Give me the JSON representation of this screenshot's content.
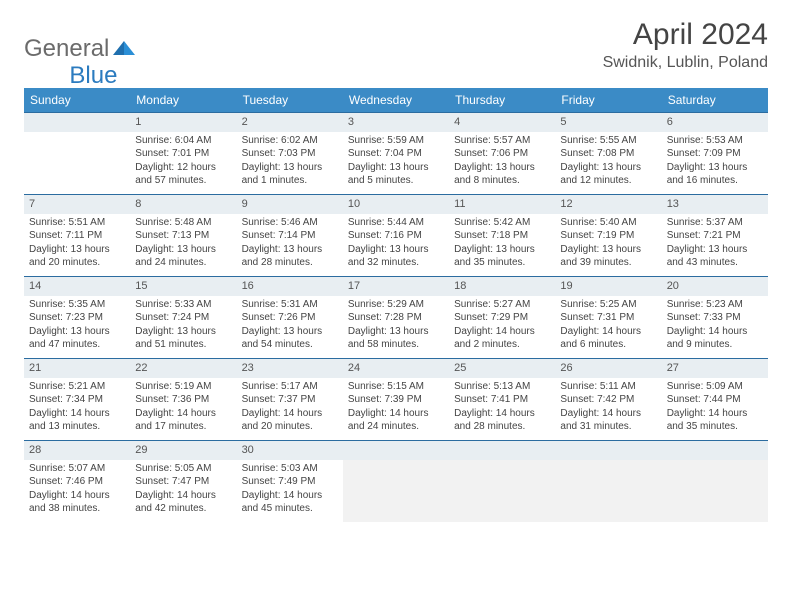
{
  "brand": {
    "general": "General",
    "blue": "Blue"
  },
  "title": "April 2024",
  "location": "Swidnik, Lublin, Poland",
  "colors": {
    "header_bg": "#3b8bc6",
    "daynum_bg": "#e8eef2",
    "daynum_border": "#2b6ca0",
    "trailing_bg": "#f2f2f2"
  },
  "weekdays": [
    "Sunday",
    "Monday",
    "Tuesday",
    "Wednesday",
    "Thursday",
    "Friday",
    "Saturday"
  ],
  "weeks": [
    [
      {
        "blank": true
      },
      {
        "day": "1",
        "sunrise": "Sunrise: 6:04 AM",
        "sunset": "Sunset: 7:01 PM",
        "dl1": "Daylight: 12 hours",
        "dl2": "and 57 minutes."
      },
      {
        "day": "2",
        "sunrise": "Sunrise: 6:02 AM",
        "sunset": "Sunset: 7:03 PM",
        "dl1": "Daylight: 13 hours",
        "dl2": "and 1 minutes."
      },
      {
        "day": "3",
        "sunrise": "Sunrise: 5:59 AM",
        "sunset": "Sunset: 7:04 PM",
        "dl1": "Daylight: 13 hours",
        "dl2": "and 5 minutes."
      },
      {
        "day": "4",
        "sunrise": "Sunrise: 5:57 AM",
        "sunset": "Sunset: 7:06 PM",
        "dl1": "Daylight: 13 hours",
        "dl2": "and 8 minutes."
      },
      {
        "day": "5",
        "sunrise": "Sunrise: 5:55 AM",
        "sunset": "Sunset: 7:08 PM",
        "dl1": "Daylight: 13 hours",
        "dl2": "and 12 minutes."
      },
      {
        "day": "6",
        "sunrise": "Sunrise: 5:53 AM",
        "sunset": "Sunset: 7:09 PM",
        "dl1": "Daylight: 13 hours",
        "dl2": "and 16 minutes."
      }
    ],
    [
      {
        "day": "7",
        "sunrise": "Sunrise: 5:51 AM",
        "sunset": "Sunset: 7:11 PM",
        "dl1": "Daylight: 13 hours",
        "dl2": "and 20 minutes."
      },
      {
        "day": "8",
        "sunrise": "Sunrise: 5:48 AM",
        "sunset": "Sunset: 7:13 PM",
        "dl1": "Daylight: 13 hours",
        "dl2": "and 24 minutes."
      },
      {
        "day": "9",
        "sunrise": "Sunrise: 5:46 AM",
        "sunset": "Sunset: 7:14 PM",
        "dl1": "Daylight: 13 hours",
        "dl2": "and 28 minutes."
      },
      {
        "day": "10",
        "sunrise": "Sunrise: 5:44 AM",
        "sunset": "Sunset: 7:16 PM",
        "dl1": "Daylight: 13 hours",
        "dl2": "and 32 minutes."
      },
      {
        "day": "11",
        "sunrise": "Sunrise: 5:42 AM",
        "sunset": "Sunset: 7:18 PM",
        "dl1": "Daylight: 13 hours",
        "dl2": "and 35 minutes."
      },
      {
        "day": "12",
        "sunrise": "Sunrise: 5:40 AM",
        "sunset": "Sunset: 7:19 PM",
        "dl1": "Daylight: 13 hours",
        "dl2": "and 39 minutes."
      },
      {
        "day": "13",
        "sunrise": "Sunrise: 5:37 AM",
        "sunset": "Sunset: 7:21 PM",
        "dl1": "Daylight: 13 hours",
        "dl2": "and 43 minutes."
      }
    ],
    [
      {
        "day": "14",
        "sunrise": "Sunrise: 5:35 AM",
        "sunset": "Sunset: 7:23 PM",
        "dl1": "Daylight: 13 hours",
        "dl2": "and 47 minutes."
      },
      {
        "day": "15",
        "sunrise": "Sunrise: 5:33 AM",
        "sunset": "Sunset: 7:24 PM",
        "dl1": "Daylight: 13 hours",
        "dl2": "and 51 minutes."
      },
      {
        "day": "16",
        "sunrise": "Sunrise: 5:31 AM",
        "sunset": "Sunset: 7:26 PM",
        "dl1": "Daylight: 13 hours",
        "dl2": "and 54 minutes."
      },
      {
        "day": "17",
        "sunrise": "Sunrise: 5:29 AM",
        "sunset": "Sunset: 7:28 PM",
        "dl1": "Daylight: 13 hours",
        "dl2": "and 58 minutes."
      },
      {
        "day": "18",
        "sunrise": "Sunrise: 5:27 AM",
        "sunset": "Sunset: 7:29 PM",
        "dl1": "Daylight: 14 hours",
        "dl2": "and 2 minutes."
      },
      {
        "day": "19",
        "sunrise": "Sunrise: 5:25 AM",
        "sunset": "Sunset: 7:31 PM",
        "dl1": "Daylight: 14 hours",
        "dl2": "and 6 minutes."
      },
      {
        "day": "20",
        "sunrise": "Sunrise: 5:23 AM",
        "sunset": "Sunset: 7:33 PM",
        "dl1": "Daylight: 14 hours",
        "dl2": "and 9 minutes."
      }
    ],
    [
      {
        "day": "21",
        "sunrise": "Sunrise: 5:21 AM",
        "sunset": "Sunset: 7:34 PM",
        "dl1": "Daylight: 14 hours",
        "dl2": "and 13 minutes."
      },
      {
        "day": "22",
        "sunrise": "Sunrise: 5:19 AM",
        "sunset": "Sunset: 7:36 PM",
        "dl1": "Daylight: 14 hours",
        "dl2": "and 17 minutes."
      },
      {
        "day": "23",
        "sunrise": "Sunrise: 5:17 AM",
        "sunset": "Sunset: 7:37 PM",
        "dl1": "Daylight: 14 hours",
        "dl2": "and 20 minutes."
      },
      {
        "day": "24",
        "sunrise": "Sunrise: 5:15 AM",
        "sunset": "Sunset: 7:39 PM",
        "dl1": "Daylight: 14 hours",
        "dl2": "and 24 minutes."
      },
      {
        "day": "25",
        "sunrise": "Sunrise: 5:13 AM",
        "sunset": "Sunset: 7:41 PM",
        "dl1": "Daylight: 14 hours",
        "dl2": "and 28 minutes."
      },
      {
        "day": "26",
        "sunrise": "Sunrise: 5:11 AM",
        "sunset": "Sunset: 7:42 PM",
        "dl1": "Daylight: 14 hours",
        "dl2": "and 31 minutes."
      },
      {
        "day": "27",
        "sunrise": "Sunrise: 5:09 AM",
        "sunset": "Sunset: 7:44 PM",
        "dl1": "Daylight: 14 hours",
        "dl2": "and 35 minutes."
      }
    ],
    [
      {
        "day": "28",
        "sunrise": "Sunrise: 5:07 AM",
        "sunset": "Sunset: 7:46 PM",
        "dl1": "Daylight: 14 hours",
        "dl2": "and 38 minutes."
      },
      {
        "day": "29",
        "sunrise": "Sunrise: 5:05 AM",
        "sunset": "Sunset: 7:47 PM",
        "dl1": "Daylight: 14 hours",
        "dl2": "and 42 minutes."
      },
      {
        "day": "30",
        "sunrise": "Sunrise: 5:03 AM",
        "sunset": "Sunset: 7:49 PM",
        "dl1": "Daylight: 14 hours",
        "dl2": "and 45 minutes."
      },
      {
        "trailing": true
      },
      {
        "trailing": true
      },
      {
        "trailing": true
      },
      {
        "trailing": true
      }
    ]
  ]
}
